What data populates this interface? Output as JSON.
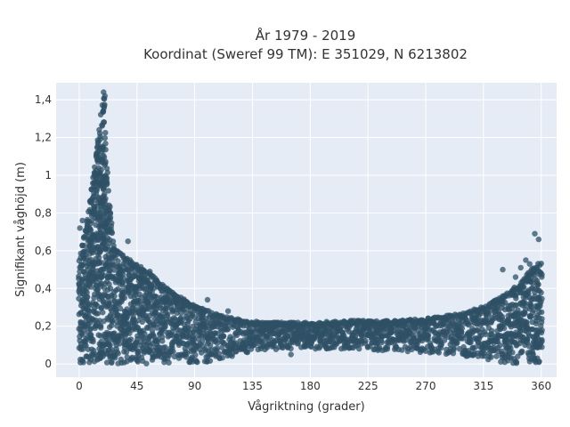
{
  "chart_data": {
    "type": "scatter",
    "title_line1": "År 1979 - 2019",
    "title_line2": "Koordinat (Sweref 99 TM): E 351029, N 6213802",
    "xlabel": "Vågriktning (grader)",
    "ylabel": "Signifikant våghöjd (m)",
    "xlim": [
      -18,
      372
    ],
    "ylim": [
      -0.07,
      1.49
    ],
    "grid": true,
    "legend": "none",
    "point_color": "#2f5066",
    "background_color": "#e5ecf6",
    "x_ticks": [
      {
        "value": 0,
        "label": "0"
      },
      {
        "value": 45,
        "label": "45"
      },
      {
        "value": 90,
        "label": "90"
      },
      {
        "value": 135,
        "label": "135"
      },
      {
        "value": 180,
        "label": "180"
      },
      {
        "value": 225,
        "label": "225"
      },
      {
        "value": 270,
        "label": "270"
      },
      {
        "value": 315,
        "label": "315"
      },
      {
        "value": 360,
        "label": "360"
      }
    ],
    "y_ticks": [
      {
        "value": 0,
        "label": "0"
      },
      {
        "value": 0.2,
        "label": "0,2"
      },
      {
        "value": 0.4,
        "label": "0,4"
      },
      {
        "value": 0.6,
        "label": "0,6"
      },
      {
        "value": 0.8,
        "label": "0,8"
      },
      {
        "value": 1.0,
        "label": "1"
      },
      {
        "value": 1.2,
        "label": "1,2"
      },
      {
        "value": 1.4,
        "label": "1,4"
      }
    ],
    "envelope": [
      {
        "x": 0,
        "y_min": 0.0,
        "y_max": 0.55
      },
      {
        "x": 3,
        "y_min": 0.0,
        "y_max": 0.65
      },
      {
        "x": 8,
        "y_min": 0.0,
        "y_max": 0.85
      },
      {
        "x": 12,
        "y_min": 0.0,
        "y_max": 1.05
      },
      {
        "x": 16,
        "y_min": 0.0,
        "y_max": 1.28
      },
      {
        "x": 19,
        "y_min": 0.0,
        "y_max": 1.44
      },
      {
        "x": 22,
        "y_min": 0.0,
        "y_max": 0.98
      },
      {
        "x": 27,
        "y_min": 0.0,
        "y_max": 0.62
      },
      {
        "x": 35,
        "y_min": 0.0,
        "y_max": 0.57
      },
      {
        "x": 45,
        "y_min": 0.0,
        "y_max": 0.53
      },
      {
        "x": 55,
        "y_min": 0.0,
        "y_max": 0.48
      },
      {
        "x": 65,
        "y_min": 0.0,
        "y_max": 0.42
      },
      {
        "x": 75,
        "y_min": 0.0,
        "y_max": 0.37
      },
      {
        "x": 85,
        "y_min": 0.0,
        "y_max": 0.33
      },
      {
        "x": 95,
        "y_min": 0.0,
        "y_max": 0.3
      },
      {
        "x": 105,
        "y_min": 0.02,
        "y_max": 0.27
      },
      {
        "x": 115,
        "y_min": 0.03,
        "y_max": 0.25
      },
      {
        "x": 130,
        "y_min": 0.05,
        "y_max": 0.23
      },
      {
        "x": 150,
        "y_min": 0.07,
        "y_max": 0.22
      },
      {
        "x": 180,
        "y_min": 0.08,
        "y_max": 0.22
      },
      {
        "x": 210,
        "y_min": 0.08,
        "y_max": 0.23
      },
      {
        "x": 240,
        "y_min": 0.07,
        "y_max": 0.23
      },
      {
        "x": 270,
        "y_min": 0.06,
        "y_max": 0.24
      },
      {
        "x": 300,
        "y_min": 0.04,
        "y_max": 0.27
      },
      {
        "x": 320,
        "y_min": 0.02,
        "y_max": 0.32
      },
      {
        "x": 335,
        "y_min": 0.0,
        "y_max": 0.38
      },
      {
        "x": 345,
        "y_min": 0.0,
        "y_max": 0.44
      },
      {
        "x": 352,
        "y_min": 0.0,
        "y_max": 0.5
      },
      {
        "x": 360,
        "y_min": 0.0,
        "y_max": 0.55
      }
    ],
    "outliers": [
      {
        "x": 0.5,
        "y": 0.72
      },
      {
        "x": 2.5,
        "y": 0.76
      },
      {
        "x": 14,
        "y": 1.08
      },
      {
        "x": 19,
        "y": 1.44
      },
      {
        "x": 20,
        "y": 1.42
      },
      {
        "x": 38,
        "y": 0.65
      },
      {
        "x": 55,
        "y": 0.49
      },
      {
        "x": 100,
        "y": 0.34
      },
      {
        "x": 116,
        "y": 0.28
      },
      {
        "x": 165,
        "y": 0.05
      },
      {
        "x": 330,
        "y": 0.5
      },
      {
        "x": 340,
        "y": 0.46
      },
      {
        "x": 344,
        "y": 0.51
      },
      {
        "x": 348,
        "y": 0.55
      },
      {
        "x": 351,
        "y": 0.53
      },
      {
        "x": 355,
        "y": 0.69
      },
      {
        "x": 358,
        "y": 0.66
      }
    ]
  }
}
